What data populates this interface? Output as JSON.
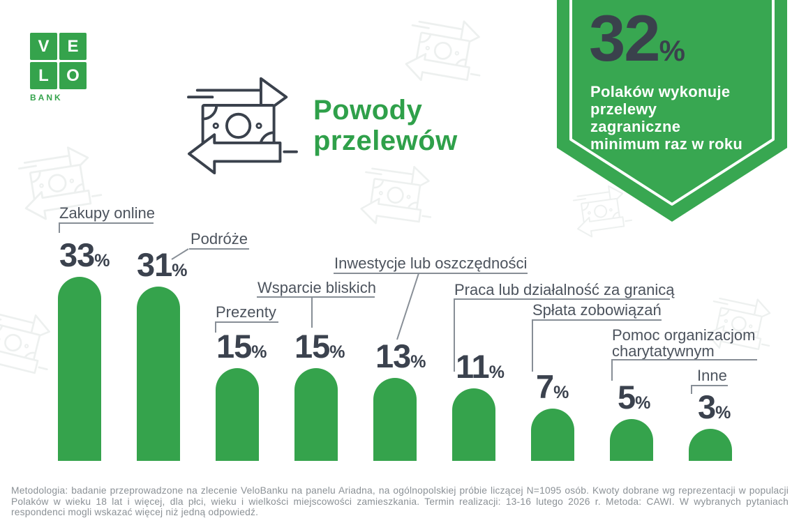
{
  "brand": {
    "logo_letters": [
      "V",
      "E",
      "L",
      "O"
    ],
    "logo_subtext": "BANK"
  },
  "header": {
    "title_line1": "Powody",
    "title_line2": "przelewów"
  },
  "badge": {
    "value": "32",
    "percent_sign": "%",
    "lines": [
      "Polaków wykonuje",
      "przelewy",
      "zagraniczne",
      "minimum raz w roku"
    ]
  },
  "chart_data": {
    "type": "bar",
    "title": "Powody przelewów",
    "categories": [
      "Zakupy online",
      "Podróże",
      "Prezenty",
      "Wsparcie bliskich",
      "Inwestycje lub oszczędności",
      "Praca lub działalność za granicą",
      "Spłata zobowiązań",
      "Pomoc organizacjom charytatywnym",
      "Inne"
    ],
    "values": [
      33,
      31,
      15,
      15,
      13,
      11,
      7,
      5,
      3
    ],
    "value_suffix": "%",
    "ylim": [
      0,
      33
    ],
    "grid": false,
    "legend": false,
    "bar_color": "#35a34c",
    "value_label_color": "#3b424e"
  },
  "colors": {
    "brand_green": "#35a34c",
    "dark_slate": "#3a414c",
    "label_gray": "#4c535d",
    "line_gray": "#878e96",
    "footer_gray": "#8b9196"
  },
  "footer": {
    "methodology": "Metodologia: badanie przeprowadzone na zlecenie VeloBanku na panelu Ariadna, na ogólnopolskiej próbie liczącej N=1095 osób. Kwoty dobrane wg reprezentacji w populacji Polaków w wieku 18 lat i więcej, dla płci, wieku i wielkości miejscowości zamieszkania. Termin realizacji: 13-16 lutego 2026 r. Metoda: CAWI. W wybranych pytaniach respondenci mogli wskazać więcej niż jedną odpowiedź."
  }
}
